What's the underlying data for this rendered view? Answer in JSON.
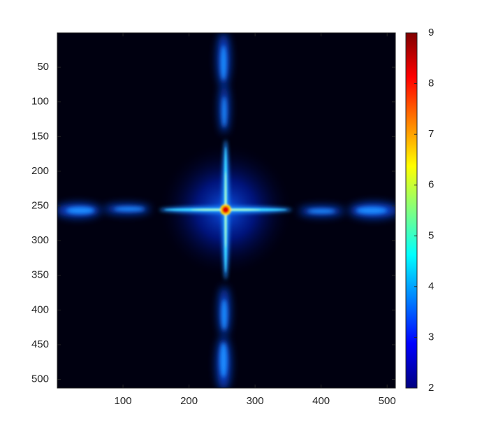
{
  "chart_data": {
    "type": "heatmap",
    "colormap": "jet",
    "xlim": [
      0.5,
      512.5
    ],
    "ylim": [
      0.5,
      512.5
    ],
    "y_reversed": true,
    "xticks": [
      100,
      200,
      300,
      400,
      500
    ],
    "yticks": [
      50,
      100,
      150,
      200,
      250,
      300,
      350,
      400,
      450,
      500
    ],
    "clim": [
      2,
      9
    ],
    "cticks": [
      2,
      3,
      4,
      5,
      6,
      7,
      8,
      9
    ]
  }
}
